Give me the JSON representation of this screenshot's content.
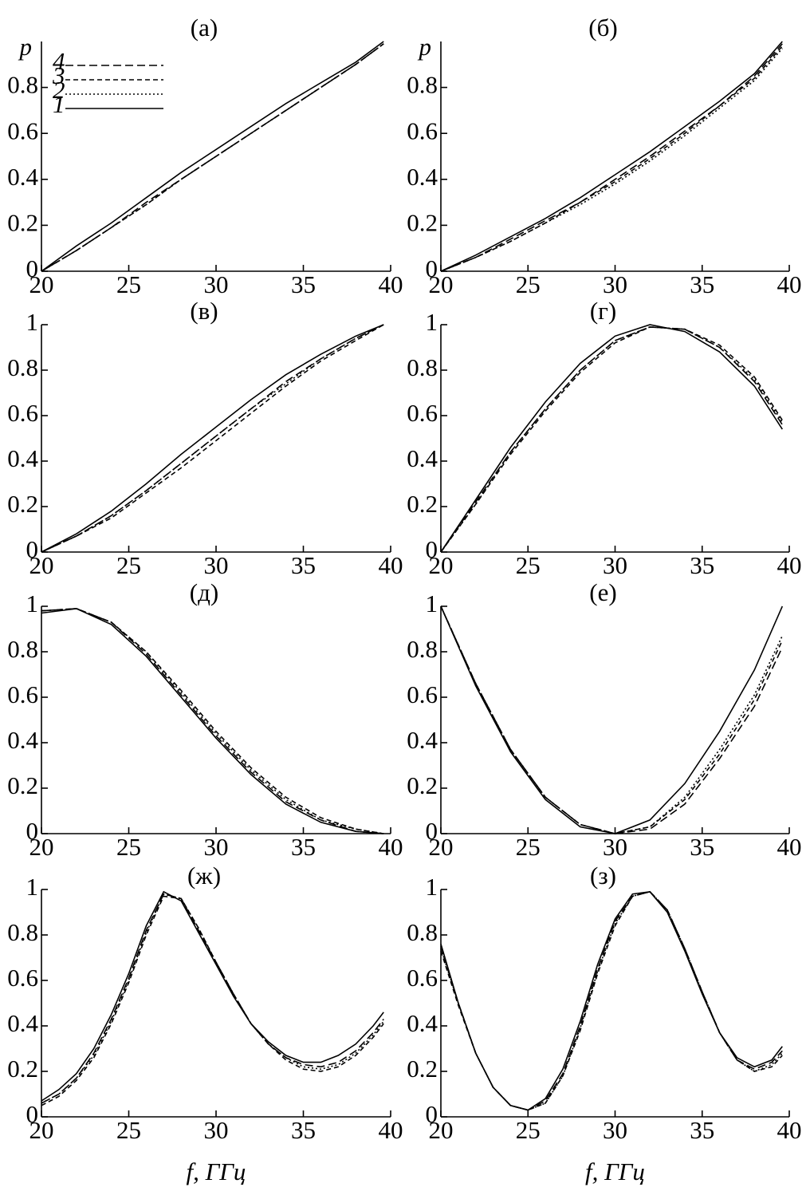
{
  "chart_data": [
    {
      "type": "line",
      "title": "(а)",
      "ylabel": "p",
      "legend": "upper left",
      "xlim": [
        20,
        40
      ],
      "ylim": [
        0,
        1
      ],
      "xticks": [
        20,
        25,
        30,
        35,
        40
      ],
      "yticks": [
        0,
        0.2,
        0.4,
        0.6,
        0.8
      ],
      "x": [
        20,
        22,
        24,
        26,
        28,
        30,
        32,
        34,
        36,
        38,
        39.6
      ],
      "series": [
        {
          "name": "1",
          "color": "#000000",
          "style": "solid",
          "values": [
            0,
            0.11,
            0.21,
            0.32,
            0.43,
            0.53,
            0.63,
            0.73,
            0.82,
            0.91,
            1.0
          ]
        },
        {
          "name": "2",
          "color": "#000000",
          "style": "dotted",
          "values": [
            0,
            0.09,
            0.19,
            0.29,
            0.4,
            0.5,
            0.6,
            0.7,
            0.8,
            0.9,
            0.99
          ]
        },
        {
          "name": "3",
          "color": "#000000",
          "style": "dashed",
          "values": [
            0,
            0.09,
            0.19,
            0.29,
            0.4,
            0.5,
            0.6,
            0.7,
            0.8,
            0.9,
            0.99
          ]
        },
        {
          "name": "4",
          "color": "#000000",
          "style": "long-dashed",
          "values": [
            0,
            0.09,
            0.19,
            0.3,
            0.4,
            0.5,
            0.6,
            0.7,
            0.8,
            0.9,
            0.99
          ]
        }
      ]
    },
    {
      "type": "line",
      "title": "(б)",
      "ylabel": "p",
      "xlim": [
        20,
        40
      ],
      "ylim": [
        0,
        1
      ],
      "xticks": [
        20,
        25,
        30,
        35,
        40
      ],
      "yticks": [
        0,
        0.2,
        0.4,
        0.6,
        0.8
      ],
      "x": [
        20,
        22,
        24,
        26,
        28,
        30,
        32,
        34,
        36,
        38,
        39.6
      ],
      "series": [
        {
          "name": "1",
          "color": "#000000",
          "style": "solid",
          "values": [
            0,
            0.07,
            0.15,
            0.23,
            0.32,
            0.42,
            0.52,
            0.63,
            0.74,
            0.86,
            1.0
          ]
        },
        {
          "name": "2",
          "color": "#000000",
          "style": "dotted",
          "values": [
            0,
            0.06,
            0.13,
            0.21,
            0.29,
            0.38,
            0.48,
            0.59,
            0.71,
            0.83,
            0.97
          ]
        },
        {
          "name": "3",
          "color": "#000000",
          "style": "dashed",
          "values": [
            0,
            0.06,
            0.13,
            0.21,
            0.3,
            0.39,
            0.49,
            0.6,
            0.72,
            0.84,
            0.98
          ]
        },
        {
          "name": "4",
          "color": "#000000",
          "style": "long-dashed",
          "values": [
            0,
            0.06,
            0.14,
            0.22,
            0.3,
            0.4,
            0.5,
            0.61,
            0.72,
            0.85,
            0.99
          ]
        }
      ]
    },
    {
      "type": "line",
      "title": "(в)",
      "xlim": [
        20,
        40
      ],
      "ylim": [
        0,
        1
      ],
      "xticks": [
        20,
        25,
        30,
        35,
        40
      ],
      "yticks": [
        0,
        0.2,
        0.4,
        0.6,
        0.8,
        1
      ],
      "x": [
        20,
        22,
        24,
        26,
        28,
        30,
        32,
        34,
        36,
        38,
        39.6
      ],
      "series": [
        {
          "name": "1",
          "color": "#000000",
          "style": "solid",
          "values": [
            0,
            0.08,
            0.18,
            0.3,
            0.43,
            0.55,
            0.67,
            0.78,
            0.87,
            0.95,
            1.0
          ]
        },
        {
          "name": "2",
          "color": "#000000",
          "style": "dotted",
          "values": [
            0,
            0.07,
            0.16,
            0.27,
            0.39,
            0.51,
            0.63,
            0.74,
            0.85,
            0.94,
            1.0
          ]
        },
        {
          "name": "3",
          "color": "#000000",
          "style": "dashed",
          "values": [
            0,
            0.07,
            0.15,
            0.26,
            0.37,
            0.49,
            0.61,
            0.73,
            0.84,
            0.93,
            1.0
          ]
        },
        {
          "name": "4",
          "color": "#000000",
          "style": "long-dashed",
          "values": [
            0,
            0.07,
            0.16,
            0.27,
            0.39,
            0.51,
            0.63,
            0.75,
            0.85,
            0.94,
            1.0
          ]
        }
      ]
    },
    {
      "type": "line",
      "title": "(г)",
      "xlim": [
        20,
        40
      ],
      "ylim": [
        0,
        1
      ],
      "xticks": [
        20,
        25,
        30,
        35,
        40
      ],
      "yticks": [
        0,
        0.2,
        0.4,
        0.6,
        0.8,
        1
      ],
      "x": [
        20,
        22,
        24,
        26,
        28,
        30,
        32,
        34,
        36,
        38,
        39.6
      ],
      "series": [
        {
          "name": "1",
          "color": "#000000",
          "style": "solid",
          "values": [
            0,
            0.23,
            0.46,
            0.66,
            0.83,
            0.95,
            1.0,
            0.97,
            0.88,
            0.73,
            0.54
          ]
        },
        {
          "name": "2",
          "color": "#000000",
          "style": "dotted",
          "values": [
            0,
            0.21,
            0.44,
            0.63,
            0.8,
            0.93,
            0.99,
            0.98,
            0.9,
            0.76,
            0.57
          ]
        },
        {
          "name": "3",
          "color": "#000000",
          "style": "dashed",
          "values": [
            0,
            0.21,
            0.43,
            0.62,
            0.79,
            0.92,
            0.99,
            0.98,
            0.91,
            0.77,
            0.58
          ]
        },
        {
          "name": "4",
          "color": "#000000",
          "style": "long-dashed",
          "values": [
            0,
            0.22,
            0.44,
            0.63,
            0.8,
            0.93,
            0.99,
            0.98,
            0.9,
            0.75,
            0.56
          ]
        }
      ]
    },
    {
      "type": "line",
      "title": "(д)",
      "xlim": [
        20,
        40
      ],
      "ylim": [
        0,
        1
      ],
      "xticks": [
        20,
        25,
        30,
        35,
        40
      ],
      "yticks": [
        0,
        0.2,
        0.4,
        0.6,
        0.8,
        1
      ],
      "x": [
        20,
        22,
        24,
        26,
        28,
        30,
        32,
        34,
        36,
        38,
        39.6
      ],
      "series": [
        {
          "name": "1",
          "color": "#000000",
          "style": "solid",
          "values": [
            0.97,
            0.99,
            0.92,
            0.78,
            0.6,
            0.42,
            0.26,
            0.13,
            0.05,
            0.01,
            0
          ]
        },
        {
          "name": "2",
          "color": "#000000",
          "style": "dotted",
          "values": [
            0.98,
            0.99,
            0.93,
            0.8,
            0.62,
            0.44,
            0.28,
            0.15,
            0.06,
            0.02,
            0
          ]
        },
        {
          "name": "3",
          "color": "#000000",
          "style": "dashed",
          "values": [
            0.98,
            0.99,
            0.93,
            0.8,
            0.63,
            0.45,
            0.29,
            0.16,
            0.07,
            0.02,
            0
          ]
        },
        {
          "name": "4",
          "color": "#000000",
          "style": "long-dashed",
          "values": [
            0.98,
            0.99,
            0.93,
            0.79,
            0.61,
            0.43,
            0.27,
            0.14,
            0.06,
            0.01,
            0
          ]
        }
      ]
    },
    {
      "type": "line",
      "title": "(е)",
      "xlim": [
        20,
        40
      ],
      "ylim": [
        0,
        1
      ],
      "xticks": [
        20,
        25,
        30,
        35,
        40
      ],
      "yticks": [
        0,
        0.2,
        0.4,
        0.6,
        0.8,
        1
      ],
      "x": [
        20,
        22,
        24,
        26,
        28,
        30,
        32,
        34,
        36,
        38,
        39.6
      ],
      "series": [
        {
          "name": "1",
          "color": "#000000",
          "style": "solid",
          "values": [
            1.0,
            0.65,
            0.36,
            0.15,
            0.03,
            0.0,
            0.06,
            0.22,
            0.45,
            0.72,
            1.0
          ]
        },
        {
          "name": "2",
          "color": "#000000",
          "style": "dotted",
          "values": [
            1.0,
            0.66,
            0.37,
            0.16,
            0.04,
            0.0,
            0.03,
            0.16,
            0.37,
            0.61,
            0.87
          ]
        },
        {
          "name": "3",
          "color": "#000000",
          "style": "dashed",
          "values": [
            1.0,
            0.66,
            0.37,
            0.16,
            0.04,
            0.0,
            0.03,
            0.15,
            0.35,
            0.59,
            0.85
          ]
        },
        {
          "name": "4",
          "color": "#000000",
          "style": "long-dashed",
          "values": [
            1.0,
            0.66,
            0.37,
            0.16,
            0.04,
            0.0,
            0.02,
            0.13,
            0.33,
            0.56,
            0.82
          ]
        }
      ]
    },
    {
      "type": "line",
      "title": "(ж)",
      "xlabel": "f, ГГц",
      "xlim": [
        20,
        40
      ],
      "ylim": [
        0,
        1
      ],
      "xticks": [
        20,
        25,
        30,
        35,
        40
      ],
      "yticks": [
        0,
        0.2,
        0.4,
        0.6,
        0.8,
        1
      ],
      "x": [
        20,
        21,
        22,
        23,
        24,
        25,
        26,
        27,
        28,
        29,
        30,
        31,
        32,
        33,
        34,
        35,
        36,
        37,
        38,
        39,
        39.6
      ],
      "series": [
        {
          "name": "1",
          "color": "#000000",
          "style": "solid",
          "values": [
            0.07,
            0.12,
            0.19,
            0.3,
            0.45,
            0.63,
            0.84,
            0.99,
            0.95,
            0.81,
            0.67,
            0.53,
            0.41,
            0.33,
            0.27,
            0.24,
            0.24,
            0.27,
            0.32,
            0.4,
            0.46
          ]
        },
        {
          "name": "2",
          "color": "#000000",
          "style": "dotted",
          "values": [
            0.06,
            0.1,
            0.17,
            0.27,
            0.42,
            0.6,
            0.81,
            0.98,
            0.96,
            0.83,
            0.68,
            0.54,
            0.41,
            0.32,
            0.26,
            0.22,
            0.21,
            0.23,
            0.28,
            0.36,
            0.42
          ]
        },
        {
          "name": "3",
          "color": "#000000",
          "style": "dashed",
          "values": [
            0.05,
            0.09,
            0.16,
            0.26,
            0.41,
            0.59,
            0.8,
            0.97,
            0.96,
            0.83,
            0.68,
            0.54,
            0.41,
            0.32,
            0.25,
            0.21,
            0.2,
            0.22,
            0.27,
            0.35,
            0.41
          ]
        },
        {
          "name": "4",
          "color": "#000000",
          "style": "long-dashed",
          "values": [
            0.06,
            0.1,
            0.17,
            0.28,
            0.43,
            0.61,
            0.82,
            0.98,
            0.96,
            0.82,
            0.68,
            0.54,
            0.41,
            0.32,
            0.26,
            0.23,
            0.22,
            0.24,
            0.29,
            0.37,
            0.43
          ]
        }
      ]
    },
    {
      "type": "line",
      "title": "(з)",
      "xlabel": "f, ГГц",
      "xlim": [
        20,
        40
      ],
      "ylim": [
        0,
        1
      ],
      "xticks": [
        20,
        25,
        30,
        35,
        40
      ],
      "yticks": [
        0,
        0.2,
        0.4,
        0.6,
        0.8,
        1
      ],
      "x": [
        20,
        21,
        22,
        23,
        24,
        25,
        26,
        27,
        28,
        29,
        30,
        31,
        32,
        33,
        34,
        35,
        36,
        37,
        38,
        39,
        39.6
      ],
      "series": [
        {
          "name": "1",
          "color": "#000000",
          "style": "solid",
          "values": [
            0.76,
            0.5,
            0.28,
            0.13,
            0.05,
            0.03,
            0.08,
            0.21,
            0.42,
            0.67,
            0.87,
            0.98,
            0.99,
            0.9,
            0.73,
            0.54,
            0.37,
            0.26,
            0.22,
            0.25,
            0.31
          ]
        },
        {
          "name": "2",
          "color": "#000000",
          "style": "dotted",
          "values": [
            0.74,
            0.5,
            0.28,
            0.13,
            0.05,
            0.03,
            0.06,
            0.18,
            0.39,
            0.64,
            0.85,
            0.97,
            0.99,
            0.91,
            0.74,
            0.55,
            0.37,
            0.25,
            0.2,
            0.23,
            0.28
          ]
        },
        {
          "name": "3",
          "color": "#000000",
          "style": "dashed",
          "values": [
            0.73,
            0.49,
            0.28,
            0.13,
            0.05,
            0.03,
            0.06,
            0.18,
            0.38,
            0.63,
            0.84,
            0.97,
            0.99,
            0.91,
            0.74,
            0.55,
            0.37,
            0.25,
            0.2,
            0.22,
            0.27
          ]
        },
        {
          "name": "4",
          "color": "#000000",
          "style": "long-dashed",
          "values": [
            0.75,
            0.5,
            0.28,
            0.13,
            0.05,
            0.03,
            0.07,
            0.19,
            0.4,
            0.65,
            0.86,
            0.97,
            0.99,
            0.91,
            0.74,
            0.55,
            0.37,
            0.25,
            0.21,
            0.24,
            0.29
          ]
        }
      ]
    }
  ]
}
